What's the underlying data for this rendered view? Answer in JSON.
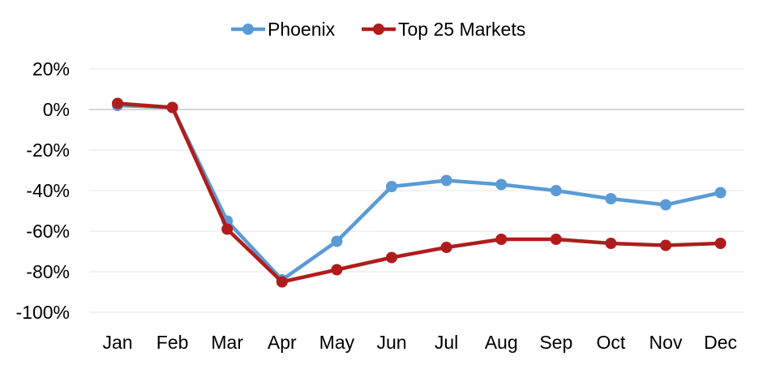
{
  "chart_data": {
    "type": "line",
    "categories": [
      "Jan",
      "Feb",
      "Mar",
      "Apr",
      "May",
      "Jun",
      "Jul",
      "Aug",
      "Sep",
      "Oct",
      "Nov",
      "Dec"
    ],
    "series": [
      {
        "name": "Phoenix",
        "color": "#5b9bd5",
        "values": [
          2,
          1,
          -55,
          -84,
          -65,
          -38,
          -35,
          -37,
          -40,
          -44,
          -47,
          -41
        ]
      },
      {
        "name": "Top 25 Markets",
        "color": "#b01c1c",
        "values": [
          3,
          1,
          -59,
          -85,
          -79,
          -73,
          -68,
          -64,
          -64,
          -66,
          -67,
          -66
        ]
      }
    ],
    "ylim": [
      -100,
      20
    ],
    "yticks": [
      20,
      0,
      -20,
      -40,
      -60,
      -80,
      -100
    ],
    "ytick_labels": [
      "20%",
      "0%",
      "-20%",
      "-40%",
      "-60%",
      "-80%",
      "-100%"
    ],
    "legend_position": "top-center",
    "grid": true,
    "title": "",
    "xlabel": "",
    "ylabel": ""
  }
}
